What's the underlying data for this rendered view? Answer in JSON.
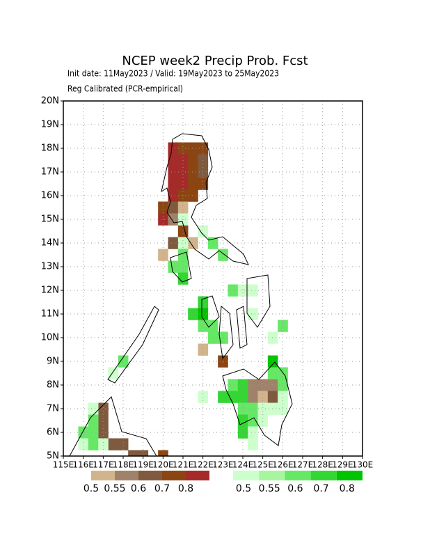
{
  "chart_data": {
    "type": "grid-map",
    "title": "NCEP week2 Precip Prob. Fcst",
    "subtitle": "Init date: 11May2023 / Valid: 19May2023 to 25May2023",
    "note": "Reg Calibrated (PCR-empirical)",
    "xlim": [
      115,
      130
    ],
    "ylim": [
      5,
      20
    ],
    "xticks": [
      {
        "value": 115,
        "label": "115E"
      },
      {
        "value": 116,
        "label": "116E"
      },
      {
        "value": 117,
        "label": "117E"
      },
      {
        "value": 118,
        "label": "118E"
      },
      {
        "value": 119,
        "label": "119E"
      },
      {
        "value": 120,
        "label": "120E"
      },
      {
        "value": 121,
        "label": "121E"
      },
      {
        "value": 122,
        "label": "122E"
      },
      {
        "value": 123,
        "label": "123E"
      },
      {
        "value": 124,
        "label": "124E"
      },
      {
        "value": 125,
        "label": "125E"
      },
      {
        "value": 126,
        "label": "126E"
      },
      {
        "value": 127,
        "label": "127E"
      },
      {
        "value": 128,
        "label": "128E"
      },
      {
        "value": 129,
        "label": "129E"
      },
      {
        "value": 130,
        "label": "130E"
      }
    ],
    "yticks": [
      {
        "value": 5,
        "label": "5N"
      },
      {
        "value": 6,
        "label": "6N"
      },
      {
        "value": 7,
        "label": "7N"
      },
      {
        "value": 8,
        "label": "8N"
      },
      {
        "value": 9,
        "label": "9N"
      },
      {
        "value": 10,
        "label": "10N"
      },
      {
        "value": 11,
        "label": "11N"
      },
      {
        "value": 12,
        "label": "12N"
      },
      {
        "value": 13,
        "label": "13N"
      },
      {
        "value": 14,
        "label": "14N"
      },
      {
        "value": 15,
        "label": "15N"
      },
      {
        "value": 16,
        "label": "16N"
      },
      {
        "value": 17,
        "label": "17N"
      },
      {
        "value": 18,
        "label": "18N"
      },
      {
        "value": 19,
        "label": "19N"
      },
      {
        "value": 20,
        "label": "20N"
      }
    ],
    "grid": true,
    "legends": [
      {
        "colors": [
          "#d2b48c",
          "#a0826a",
          "#7f5a3e",
          "#8b4513",
          "#a52a2a"
        ],
        "levels": [
          0.5,
          0.55,
          0.6,
          0.7,
          0.8
        ]
      },
      {
        "colors": [
          "#ccffcc",
          "#a8f5a0",
          "#66e866",
          "#33d633",
          "#00c400"
        ],
        "levels": [
          0.5,
          0.55,
          0.6,
          0.7,
          0.8
        ]
      }
    ],
    "dry_cells": [
      [
        120.5,
        18,
        0.8
      ],
      [
        121,
        18,
        0.7
      ],
      [
        121.5,
        18,
        0.7
      ],
      [
        122,
        18,
        0.7
      ],
      [
        120.5,
        17.5,
        0.8
      ],
      [
        121,
        17.5,
        0.8
      ],
      [
        121.5,
        17.5,
        0.7
      ],
      [
        122,
        17.5,
        0.6
      ],
      [
        120.5,
        17,
        0.8
      ],
      [
        121,
        17,
        0.8
      ],
      [
        121.5,
        17,
        0.7
      ],
      [
        122,
        17,
        0.6
      ],
      [
        120.5,
        16.5,
        0.8
      ],
      [
        121,
        16.5,
        0.8
      ],
      [
        121.5,
        16.5,
        0.7
      ],
      [
        122,
        16.5,
        0.7
      ],
      [
        120.5,
        16,
        0.8
      ],
      [
        121,
        16,
        0.7
      ],
      [
        121.5,
        16,
        0.7
      ],
      [
        120,
        15.5,
        0.7
      ],
      [
        120.5,
        15.5,
        0.6
      ],
      [
        121,
        15.5,
        0.5
      ],
      [
        120,
        15,
        0.8
      ],
      [
        120.5,
        15,
        0.55
      ],
      [
        121,
        14.5,
        0.7
      ],
      [
        120.5,
        14,
        0.6
      ],
      [
        121.5,
        14,
        0.5
      ],
      [
        120,
        13.5,
        0.5
      ],
      [
        122,
        9.5,
        0.5
      ],
      [
        123,
        9,
        0.7
      ],
      [
        124.5,
        8,
        0.55
      ],
      [
        125,
        8,
        0.55
      ],
      [
        125.5,
        8,
        0.55
      ],
      [
        124.5,
        7.5,
        0.55
      ],
      [
        125,
        7.5,
        0.5
      ],
      [
        125.5,
        7.5,
        0.6
      ],
      [
        117,
        7,
        0.6
      ],
      [
        117,
        6.5,
        0.6
      ],
      [
        117,
        6,
        0.6
      ],
      [
        117.5,
        5.5,
        0.6
      ],
      [
        118,
        5.5,
        0.6
      ],
      [
        118.5,
        5,
        0.6
      ],
      [
        119,
        5,
        0.6
      ],
      [
        120,
        5,
        0.7
      ]
    ],
    "wet_cells": [
      [
        121,
        15,
        0.5
      ],
      [
        121,
        14,
        0.5
      ],
      [
        122,
        14.5,
        0.5
      ],
      [
        122.5,
        14,
        0.6
      ],
      [
        121,
        13.5,
        0.6
      ],
      [
        123,
        13.5,
        0.6
      ],
      [
        120.5,
        13,
        0.6
      ],
      [
        121,
        13,
        0.6
      ],
      [
        121,
        12.5,
        0.7
      ],
      [
        123.5,
        12,
        0.6
      ],
      [
        124,
        12,
        0.5
      ],
      [
        124.5,
        12,
        0.5
      ],
      [
        122,
        11.5,
        0.7
      ],
      [
        122,
        11,
        0.8
      ],
      [
        121.5,
        11,
        0.7
      ],
      [
        124.5,
        11,
        0.5
      ],
      [
        122,
        10.5,
        0.6
      ],
      [
        122.5,
        10.5,
        0.6
      ],
      [
        126,
        10.5,
        0.6
      ],
      [
        122.5,
        10,
        0.6
      ],
      [
        123,
        10,
        0.6
      ],
      [
        125.5,
        10,
        0.5
      ],
      [
        118,
        9,
        0.6
      ],
      [
        125.5,
        9,
        0.8
      ],
      [
        117.5,
        8.5,
        0.5
      ],
      [
        125.5,
        8.5,
        0.6
      ],
      [
        126,
        8.5,
        0.6
      ],
      [
        123.5,
        8,
        0.6
      ],
      [
        124,
        8,
        0.7
      ],
      [
        126,
        8,
        0.6
      ],
      [
        122,
        7.5,
        0.5
      ],
      [
        123,
        7.5,
        0.7
      ],
      [
        123.5,
        7.5,
        0.7
      ],
      [
        124,
        7.5,
        0.7
      ],
      [
        126,
        7.5,
        0.5
      ],
      [
        116.5,
        7,
        0.5
      ],
      [
        124,
        7,
        0.6
      ],
      [
        124.5,
        7,
        0.6
      ],
      [
        125,
        7,
        0.5
      ],
      [
        125.5,
        7,
        0.5
      ],
      [
        126,
        7,
        0.5
      ],
      [
        116.5,
        6.5,
        0.6
      ],
      [
        124,
        6.5,
        0.7
      ],
      [
        124.5,
        6.5,
        0.6
      ],
      [
        125,
        6.5,
        0.5
      ],
      [
        116,
        6,
        0.6
      ],
      [
        116.5,
        6,
        0.6
      ],
      [
        124,
        6,
        0.7
      ],
      [
        124.5,
        6,
        0.5
      ],
      [
        116,
        5.5,
        0.5
      ],
      [
        116.5,
        5.5,
        0.6
      ],
      [
        117,
        5.5,
        0.5
      ],
      [
        124.5,
        5.5,
        0.5
      ]
    ]
  }
}
